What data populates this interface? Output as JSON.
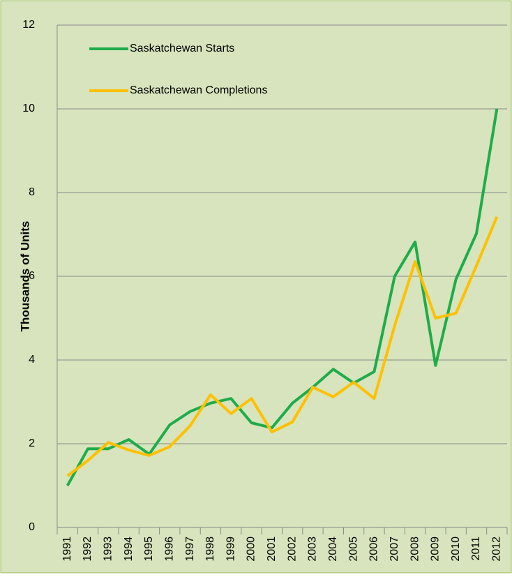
{
  "chart_data": {
    "type": "line",
    "y_label": "Thousands of Units",
    "categories": [
      "1991",
      "1992",
      "1993",
      "1994",
      "1995",
      "1996",
      "1997",
      "1998",
      "1999",
      "2000",
      "2001",
      "2002",
      "2003",
      "2004",
      "2005",
      "2006",
      "2007",
      "2008",
      "2009",
      "2010",
      "2011",
      "2012"
    ],
    "series": [
      {
        "name": "Saskatchewan Starts",
        "color": "#1fac4a",
        "values": [
          1.0,
          1.88,
          1.88,
          2.1,
          1.75,
          2.45,
          2.77,
          2.97,
          3.08,
          2.5,
          2.38,
          2.97,
          3.35,
          3.78,
          3.45,
          3.72,
          6.0,
          6.82,
          3.87,
          5.93,
          7.02,
          10.0
        ]
      },
      {
        "name": "Saskatchewan Completions",
        "color": "#ffc000",
        "values": [
          1.23,
          1.6,
          2.03,
          1.85,
          1.72,
          1.93,
          2.43,
          3.17,
          2.72,
          3.08,
          2.28,
          2.52,
          3.35,
          3.12,
          3.47,
          3.08,
          4.82,
          6.35,
          5.0,
          5.12,
          6.25,
          7.42
        ]
      }
    ],
    "ylim": [
      0,
      12
    ],
    "yticks": [
      0,
      2,
      4,
      6,
      8,
      10,
      12
    ],
    "grid": true,
    "legend": "top-left"
  }
}
